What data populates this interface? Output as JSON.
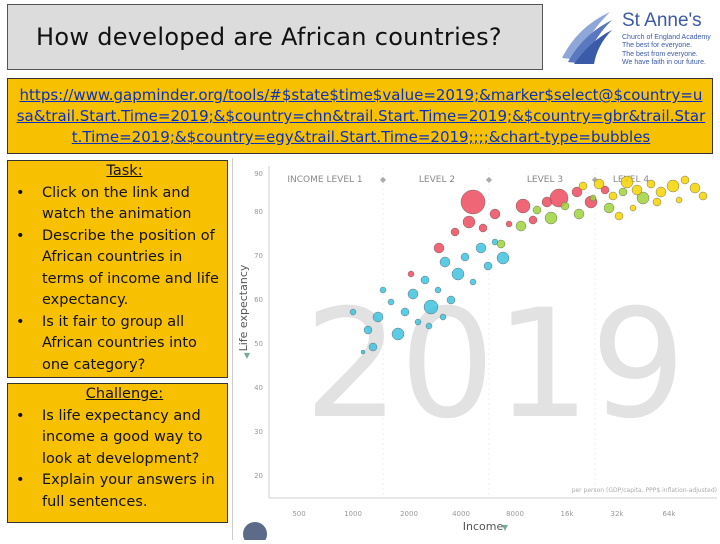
{
  "slide": {
    "title": "How developed are African countries?",
    "link": "https://www.gapminder.org/tools/#$state$time$value=2019;&marker$select@$country=usa&trail.Start.Time=2019;&$country=chn&trail.Start.Time=2019;&$country=gbr&trail.Start.Time=2019;&$country=egy&trail.Start.Time=2019;;;;&chart-type=bubbles"
  },
  "logo": {
    "name": "St Anne's",
    "sub_lines": [
      "Church of England Academy",
      "The best for everyone.",
      "The best from everyone.",
      "We have faith in our future."
    ]
  },
  "task": {
    "heading": "Task:",
    "items": [
      "Click on the link and watch the animation",
      "Describe the position of African countries in terms of income and life expectancy.",
      "Is it fair to group all African countries into one category?"
    ]
  },
  "challenge": {
    "heading": "Challenge:",
    "items": [
      "Is life expectancy and income a good way to look at development?",
      "Explain your answers in full sentences."
    ]
  },
  "chart": {
    "year": "2019",
    "y_label": "Life expectancy",
    "x_label": "Income",
    "income_levels": [
      "INCOME LEVEL 1",
      "LEVEL 2",
      "LEVEL 3",
      "LEVEL 4"
    ],
    "y_ticks": [
      "90",
      "80",
      "70",
      "60",
      "50",
      "40",
      "30",
      "20"
    ],
    "x_ticks": [
      "500",
      "1000",
      "2000",
      "4000",
      "8000",
      "16k",
      "32k",
      "64k"
    ],
    "note": "per person (GDP/capita, PPP$ inflation-adjusted)",
    "colors": {
      "africa": "#3fc3e0",
      "asia": "#ef4b5e",
      "americas": "#9ed23a",
      "europe": "#f6d300"
    }
  }
}
